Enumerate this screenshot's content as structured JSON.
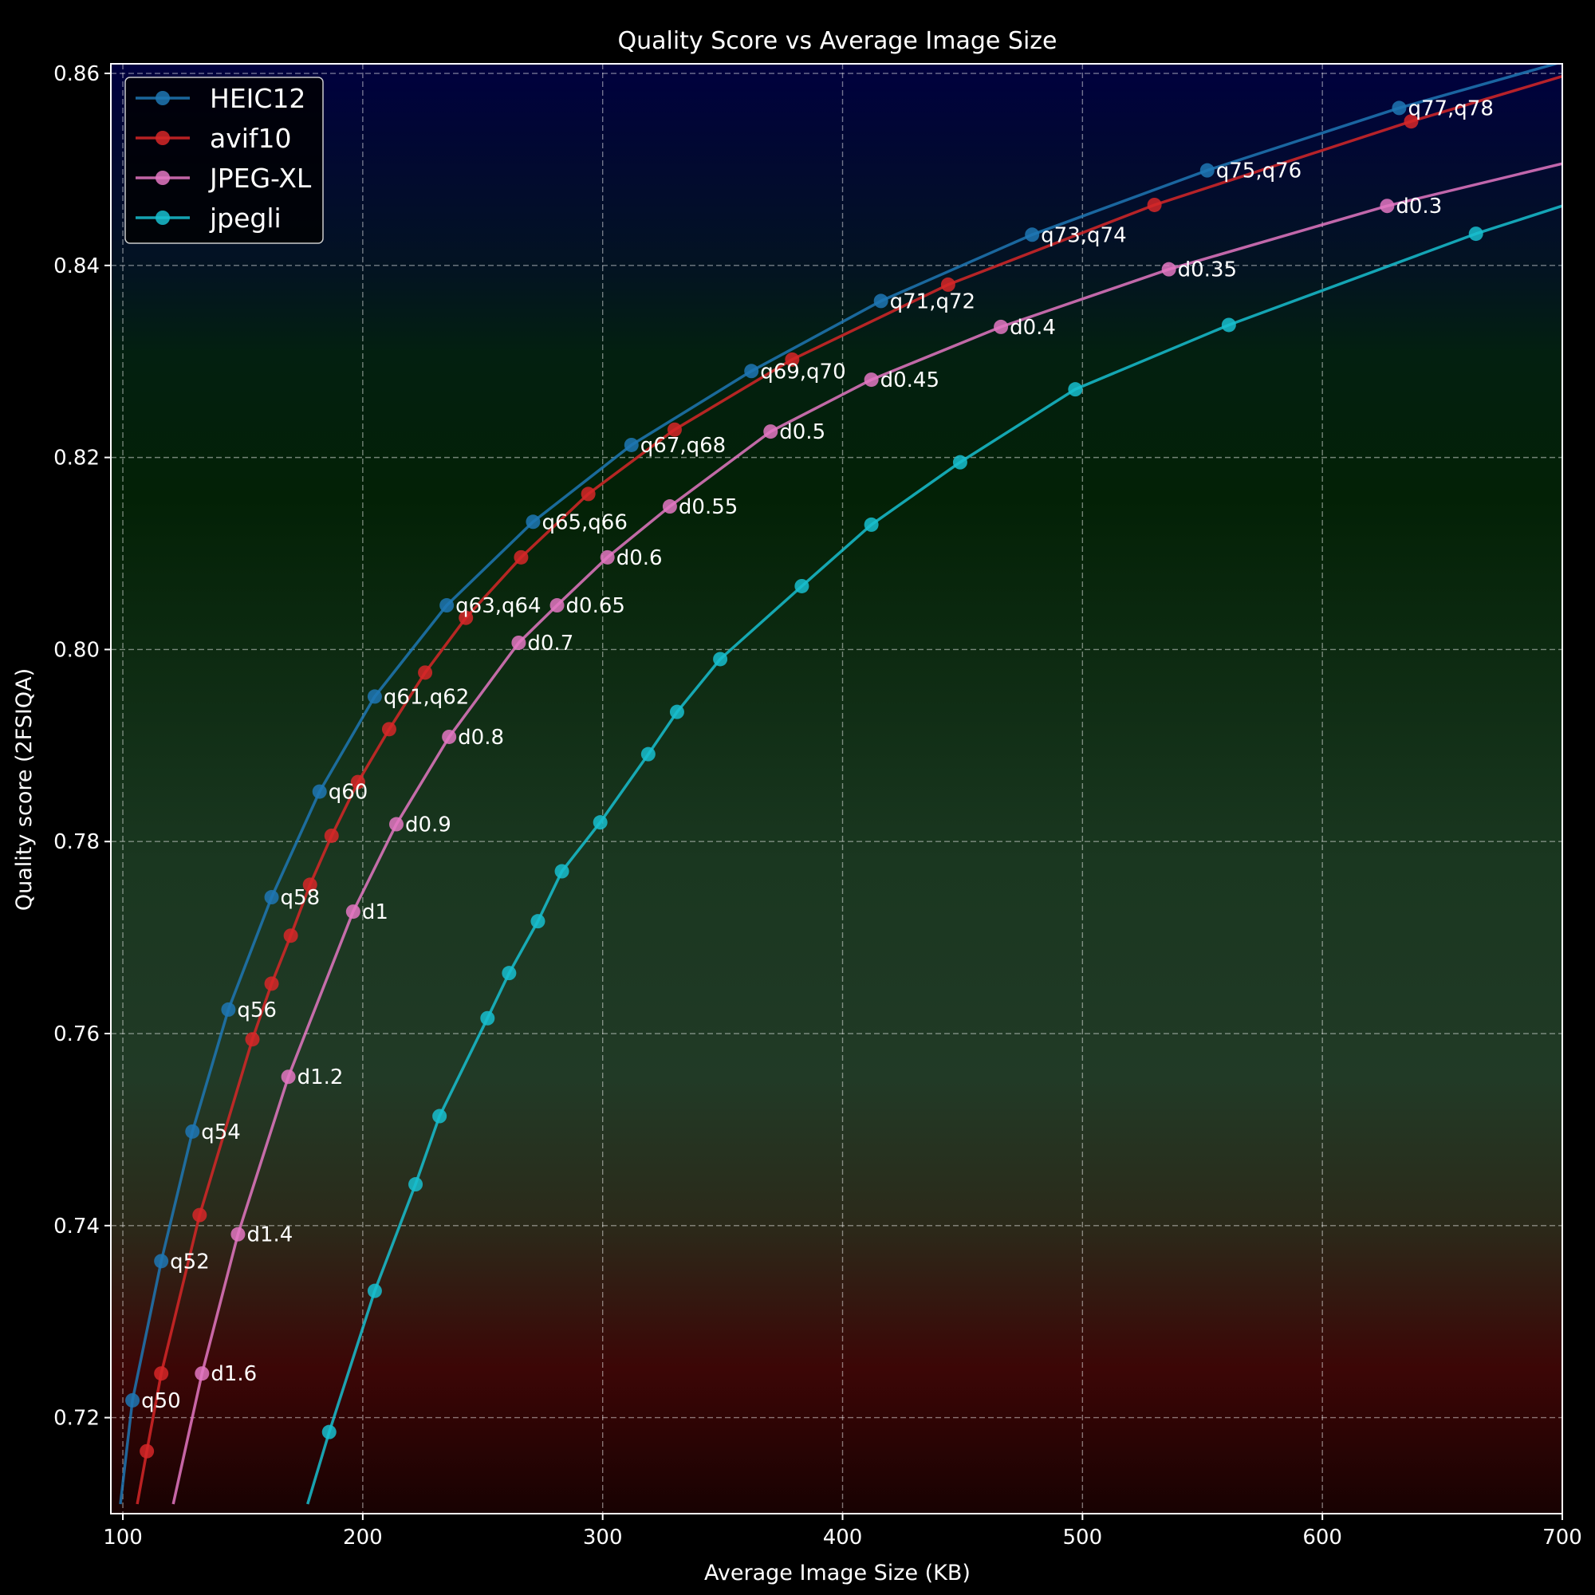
{
  "chart_data": {
    "type": "line",
    "title": "Quality Score vs Average Image Size",
    "xlabel": "Average Image Size (KB)",
    "ylabel": "Quality score (2FSIQA)",
    "xlim": [
      95,
      700
    ],
    "ylim": [
      0.71,
      0.861
    ],
    "xticks": [
      100,
      200,
      300,
      400,
      500,
      600,
      700
    ],
    "yticks": [
      0.72,
      0.74,
      0.76,
      0.78,
      0.8,
      0.82,
      0.84,
      0.86
    ],
    "ytick_labels": [
      "0.72",
      "0.74",
      "0.76",
      "0.78",
      "0.80",
      "0.82",
      "0.84",
      "0.86"
    ],
    "grid": true,
    "legend_position": "top-left",
    "background": "vertical gradient: navy (top) to dark green (middle) to dark red (bottom)",
    "series": [
      {
        "name": "HEIC12",
        "color": "#1f77b4",
        "points": [
          {
            "x": 104,
            "y": 0.7218,
            "label": "q50"
          },
          {
            "x": 116,
            "y": 0.7363,
            "label": "q52"
          },
          {
            "x": 129,
            "y": 0.7498,
            "label": "q54"
          },
          {
            "x": 144,
            "y": 0.7625,
            "label": "q56"
          },
          {
            "x": 162,
            "y": 0.7742,
            "label": "q58"
          },
          {
            "x": 182,
            "y": 0.7852,
            "label": "q60"
          },
          {
            "x": 205,
            "y": 0.7951,
            "label": "q61,q62"
          },
          {
            "x": 235,
            "y": 0.8046,
            "label": "q63,q64"
          },
          {
            "x": 271,
            "y": 0.8133,
            "label": "q65,q66"
          },
          {
            "x": 312,
            "y": 0.8213,
            "label": "q67,q68"
          },
          {
            "x": 362,
            "y": 0.829,
            "label": "q69,q70"
          },
          {
            "x": 416,
            "y": 0.8363,
            "label": "q71,q72"
          },
          {
            "x": 479,
            "y": 0.8432,
            "label": "q73,q74"
          },
          {
            "x": 552,
            "y": 0.8499,
            "label": "q75,q76"
          },
          {
            "x": 632,
            "y": 0.8564,
            "label": "q77,q78"
          }
        ],
        "line_ends": [
          {
            "x": 99,
            "y": 0.711
          },
          {
            "x": 700,
            "y": 0.8612
          }
        ]
      },
      {
        "name": "avif10",
        "color": "#d62728",
        "points": [
          {
            "x": 110,
            "y": 0.7165
          },
          {
            "x": 116,
            "y": 0.7246
          },
          {
            "x": 132,
            "y": 0.7411
          },
          {
            "x": 154,
            "y": 0.7594
          },
          {
            "x": 162,
            "y": 0.7652
          },
          {
            "x": 170,
            "y": 0.7702
          },
          {
            "x": 178,
            "y": 0.7755
          },
          {
            "x": 187,
            "y": 0.7806
          },
          {
            "x": 198,
            "y": 0.7862
          },
          {
            "x": 211,
            "y": 0.7917
          },
          {
            "x": 226,
            "y": 0.7976
          },
          {
            "x": 243,
            "y": 0.8033
          },
          {
            "x": 266,
            "y": 0.8096
          },
          {
            "x": 294,
            "y": 0.8162
          },
          {
            "x": 330,
            "y": 0.8229
          },
          {
            "x": 379,
            "y": 0.8302
          },
          {
            "x": 444,
            "y": 0.838
          },
          {
            "x": 530,
            "y": 0.8463
          },
          {
            "x": 637,
            "y": 0.855
          }
        ],
        "line_ends": [
          {
            "x": 106,
            "y": 0.711
          },
          {
            "x": 700,
            "y": 0.8597
          }
        ]
      },
      {
        "name": "JPEG-XL",
        "color": "#e377c2",
        "points": [
          {
            "x": 133,
            "y": 0.7246,
            "label": "d1.6"
          },
          {
            "x": 148,
            "y": 0.7391,
            "label": "d1.4"
          },
          {
            "x": 169,
            "y": 0.7555,
            "label": "d1.2"
          },
          {
            "x": 196,
            "y": 0.7727,
            "label": "d1"
          },
          {
            "x": 214,
            "y": 0.7818,
            "label": "d0.9"
          },
          {
            "x": 236,
            "y": 0.7909,
            "label": "d0.8"
          },
          {
            "x": 265,
            "y": 0.8007,
            "label": "d0.7"
          },
          {
            "x": 281,
            "y": 0.8046,
            "label": "d0.65"
          },
          {
            "x": 302,
            "y": 0.8096,
            "label": "d0.6"
          },
          {
            "x": 328,
            "y": 0.8149,
            "label": "d0.55"
          },
          {
            "x": 370,
            "y": 0.8227,
            "label": "d0.5"
          },
          {
            "x": 412,
            "y": 0.8281,
            "label": "d0.45"
          },
          {
            "x": 466,
            "y": 0.8336,
            "label": "d0.4"
          },
          {
            "x": 536,
            "y": 0.8396,
            "label": "d0.35"
          },
          {
            "x": 627,
            "y": 0.8462,
            "label": "d0.3"
          }
        ],
        "line_ends": [
          {
            "x": 121,
            "y": 0.711
          },
          {
            "x": 700,
            "y": 0.8506
          }
        ]
      },
      {
        "name": "jpegli",
        "color": "#17becf",
        "points": [
          {
            "x": 186,
            "y": 0.7185
          },
          {
            "x": 205,
            "y": 0.7332
          },
          {
            "x": 222,
            "y": 0.7443
          },
          {
            "x": 232,
            "y": 0.7514
          },
          {
            "x": 252,
            "y": 0.7616
          },
          {
            "x": 261,
            "y": 0.7663
          },
          {
            "x": 273,
            "y": 0.7717
          },
          {
            "x": 283,
            "y": 0.7769
          },
          {
            "x": 299,
            "y": 0.782
          },
          {
            "x": 319,
            "y": 0.7891
          },
          {
            "x": 331,
            "y": 0.7935
          },
          {
            "x": 349,
            "y": 0.799
          },
          {
            "x": 383,
            "y": 0.8066
          },
          {
            "x": 412,
            "y": 0.813
          },
          {
            "x": 449,
            "y": 0.8195
          },
          {
            "x": 497,
            "y": 0.8271
          },
          {
            "x": 561,
            "y": 0.8338
          },
          {
            "x": 664,
            "y": 0.8433
          }
        ],
        "line_ends": [
          {
            "x": 177,
            "y": 0.711
          },
          {
            "x": 700,
            "y": 0.8462
          }
        ]
      }
    ]
  }
}
